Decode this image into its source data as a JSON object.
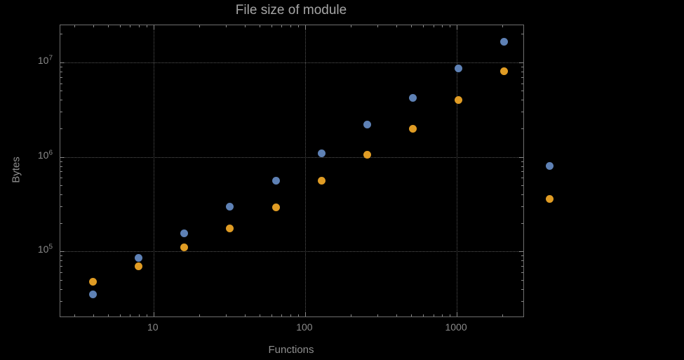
{
  "chart_data": {
    "type": "scatter",
    "title": "File size of module",
    "xlabel": "Functions",
    "ylabel": "Bytes",
    "xscale": "log",
    "yscale": "log",
    "grid": true,
    "legend": "none",
    "xlim": [
      2.43,
      2750
    ],
    "ylim": [
      20500,
      24700000
    ],
    "x_ticks": [
      {
        "value": 10,
        "label": "10"
      },
      {
        "value": 100,
        "label": "100"
      },
      {
        "value": 1000,
        "label": "1000"
      }
    ],
    "y_ticks": [
      {
        "value": 100000,
        "base": "10",
        "exp": "5"
      },
      {
        "value": 1000000,
        "base": "10",
        "exp": "6"
      },
      {
        "value": 10000000,
        "base": "10",
        "exp": "7"
      }
    ],
    "series": [
      {
        "name": "series-blue",
        "color": "#5E81B5",
        "points": [
          [
            4,
            35000
          ],
          [
            8,
            85000
          ],
          [
            16,
            155000
          ],
          [
            32,
            300000
          ],
          [
            64,
            560000
          ],
          [
            128,
            1100000
          ],
          [
            256,
            2200000
          ],
          [
            512,
            4200000
          ],
          [
            1024,
            8600000
          ],
          [
            2048,
            16500000
          ],
          [
            4096,
            800000
          ]
        ]
      },
      {
        "name": "series-orange",
        "color": "#E09C24",
        "points": [
          [
            4,
            48000
          ],
          [
            8,
            70000
          ],
          [
            16,
            110000
          ],
          [
            32,
            175000
          ],
          [
            64,
            295000
          ],
          [
            128,
            560000
          ],
          [
            256,
            1050000
          ],
          [
            512,
            2000000
          ],
          [
            1024,
            4000000
          ],
          [
            2048,
            8100000
          ],
          [
            4096,
            360000
          ]
        ]
      }
    ]
  }
}
